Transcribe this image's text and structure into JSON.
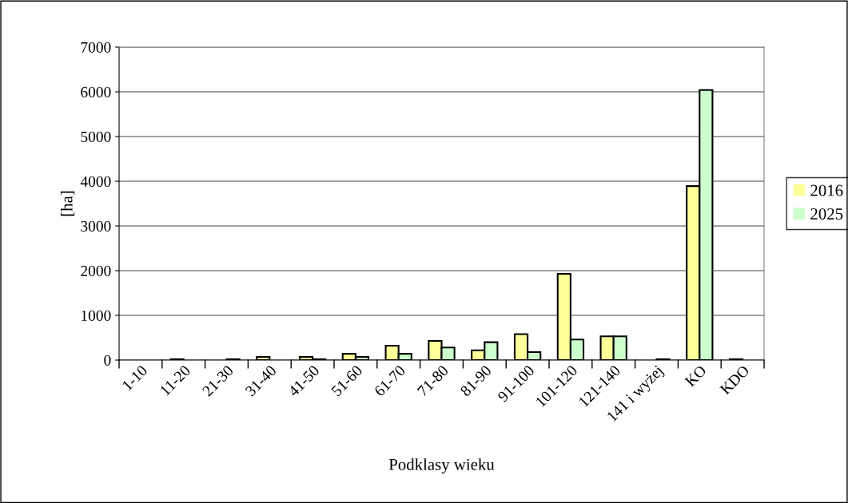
{
  "chart_data": {
    "type": "bar",
    "xlabel": "Podklasy wieku",
    "ylabel": "[ha]",
    "categories": [
      "1-10",
      "11-20",
      "21-30",
      "31-40",
      "41-50",
      "51-60",
      "61-70",
      "71-80",
      "81-90",
      "91-100",
      "101-120",
      "121-140",
      "141 i wyżej",
      "KO",
      "KDO"
    ],
    "series": [
      {
        "name": "2016",
        "color": "#ffff99",
        "values": [
          0,
          20,
          0,
          70,
          70,
          140,
          320,
          430,
          220,
          580,
          1930,
          530,
          0,
          3890,
          20
        ]
      },
      {
        "name": "2025",
        "color": "#ccffcc",
        "values": [
          0,
          0,
          20,
          0,
          20,
          70,
          140,
          280,
          400,
          180,
          460,
          530,
          20,
          6040,
          0
        ]
      }
    ],
    "ylim": [
      0,
      7000
    ],
    "yticks": [
      0,
      1000,
      2000,
      3000,
      4000,
      5000,
      6000,
      7000
    ],
    "grid": "y",
    "legend": "right"
  }
}
